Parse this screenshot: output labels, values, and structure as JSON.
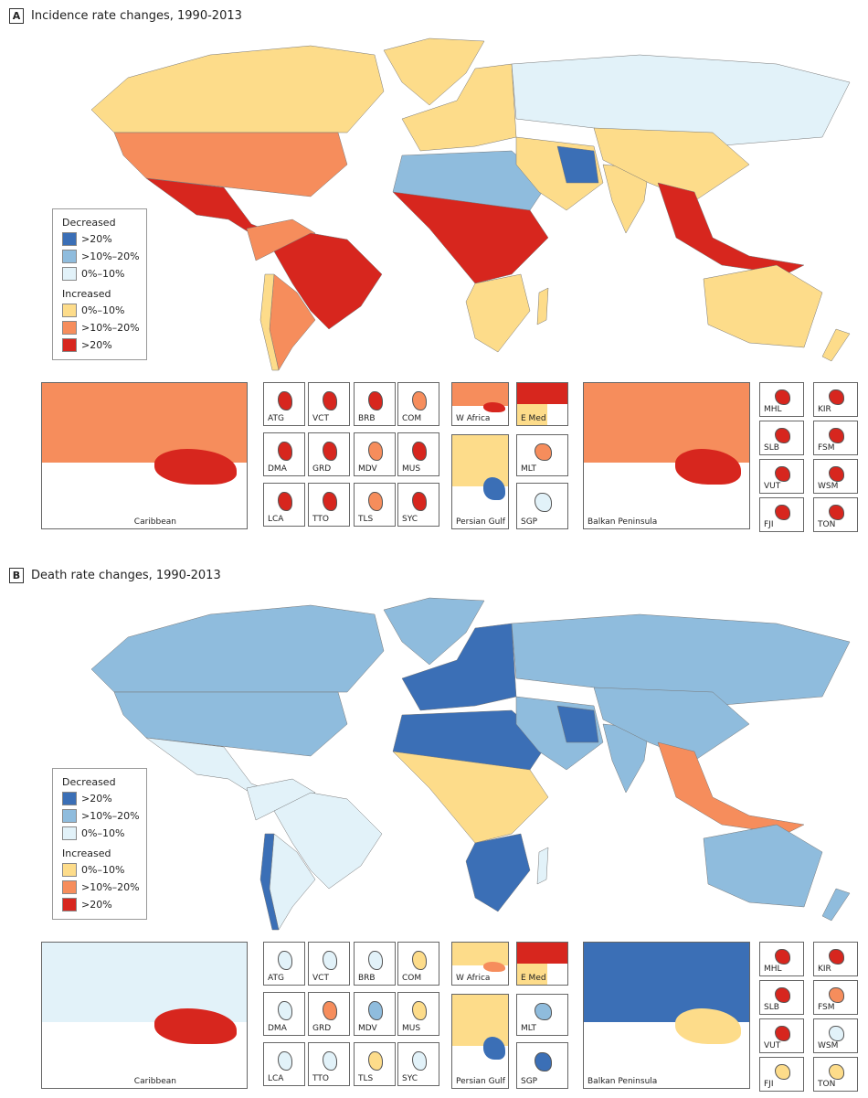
{
  "colors": {
    "dec_gt20": "#3b6fb6",
    "dec_10_20": "#8fbcdd",
    "dec_0_10": "#e2f2f9",
    "inc_0_10": "#fddc8a",
    "inc_10_20": "#f68d5c",
    "inc_gt20": "#d7261e"
  },
  "legend": {
    "decreased_heading": "Decreased",
    "increased_heading": "Increased",
    "decreased": [
      {
        "key": "dec_gt20",
        "label": ">20%"
      },
      {
        "key": "dec_10_20",
        "label": ">10%–20%"
      },
      {
        "key": "dec_0_10",
        "label": "0%–10%"
      }
    ],
    "increased": [
      {
        "key": "inc_0_10",
        "label": "0%–10%"
      },
      {
        "key": "inc_10_20",
        "label": ">10%–20%"
      },
      {
        "key": "inc_gt20",
        "label": ">20%"
      }
    ]
  },
  "panels": [
    {
      "label": "A",
      "title": "Incidence rate changes, 1990-2013",
      "regions": {
        "canada": "inc_0_10",
        "greenland": "inc_0_10",
        "usa": "inc_10_20",
        "mexico": "inc_gt20",
        "nsam": "inc_10_20",
        "brazil": "inc_gt20",
        "argentina": "inc_10_20",
        "chile": "inc_0_10",
        "weurope": "inc_0_10",
        "russia": "dec_0_10",
        "nafrica": "dec_10_20",
        "wafrica": "inc_gt20",
        "safrica": "inc_0_10",
        "madagascar": "inc_0_10",
        "mideast": "inc_0_10",
        "iran": "dec_gt20",
        "india": "inc_0_10",
        "china": "inc_0_10",
        "seasia": "inc_gt20",
        "australia": "inc_0_10",
        "nz": "inc_0_10"
      },
      "insets": [
        {
          "label": "Caribbean",
          "c": [
            "inc_10_20",
            "inc_gt20"
          ]
        },
        {
          "label": "ATG",
          "c": [
            "inc_gt20"
          ]
        },
        {
          "label": "VCT",
          "c": [
            "inc_gt20"
          ]
        },
        {
          "label": "BRB",
          "c": [
            "inc_gt20"
          ]
        },
        {
          "label": "COM",
          "c": [
            "inc_10_20"
          ]
        },
        {
          "label": "DMA",
          "c": [
            "inc_gt20"
          ]
        },
        {
          "label": "GRD",
          "c": [
            "inc_gt20"
          ]
        },
        {
          "label": "MDV",
          "c": [
            "inc_10_20"
          ]
        },
        {
          "label": "MUS",
          "c": [
            "inc_gt20"
          ]
        },
        {
          "label": "LCA",
          "c": [
            "inc_gt20"
          ]
        },
        {
          "label": "TTO",
          "c": [
            "inc_gt20"
          ]
        },
        {
          "label": "TLS",
          "c": [
            "inc_10_20"
          ]
        },
        {
          "label": "SYC",
          "c": [
            "inc_gt20"
          ]
        },
        {
          "label": "W Africa",
          "c": [
            "inc_10_20",
            "inc_gt20"
          ]
        },
        {
          "label": "E Med",
          "c": [
            "inc_gt20",
            "inc_0_10"
          ]
        },
        {
          "label": "Persian Gulf",
          "c": [
            "inc_0_10",
            "dec_gt20"
          ]
        },
        {
          "label": "MLT",
          "c": [
            "inc_10_20"
          ]
        },
        {
          "label": "SGP",
          "c": [
            "dec_0_10"
          ]
        },
        {
          "label": "Balkan Peninsula",
          "c": [
            "inc_10_20",
            "inc_gt20"
          ]
        },
        {
          "label": "MHL",
          "c": [
            "inc_gt20"
          ]
        },
        {
          "label": "KIR",
          "c": [
            "inc_gt20"
          ]
        },
        {
          "label": "SLB",
          "c": [
            "inc_gt20"
          ]
        },
        {
          "label": "FSM",
          "c": [
            "inc_gt20"
          ]
        },
        {
          "label": "VUT",
          "c": [
            "inc_gt20"
          ]
        },
        {
          "label": "WSM",
          "c": [
            "inc_gt20"
          ]
        },
        {
          "label": "FJI",
          "c": [
            "inc_gt20"
          ]
        },
        {
          "label": "TON",
          "c": [
            "inc_gt20"
          ]
        }
      ]
    },
    {
      "label": "B",
      "title": "Death rate changes, 1990-2013",
      "regions": {
        "canada": "dec_10_20",
        "greenland": "dec_10_20",
        "usa": "dec_10_20",
        "mexico": "dec_0_10",
        "nsam": "dec_0_10",
        "brazil": "dec_0_10",
        "argentina": "dec_0_10",
        "chile": "dec_gt20",
        "weurope": "dec_gt20",
        "russia": "dec_10_20",
        "nafrica": "dec_gt20",
        "wafrica": "inc_0_10",
        "safrica": "dec_gt20",
        "madagascar": "dec_0_10",
        "mideast": "dec_10_20",
        "iran": "dec_gt20",
        "india": "dec_10_20",
        "china": "dec_10_20",
        "seasia": "inc_10_20",
        "australia": "dec_10_20",
        "nz": "dec_10_20"
      },
      "insets": [
        {
          "label": "Caribbean",
          "c": [
            "dec_0_10",
            "inc_gt20"
          ]
        },
        {
          "label": "ATG",
          "c": [
            "dec_0_10"
          ]
        },
        {
          "label": "VCT",
          "c": [
            "dec_0_10"
          ]
        },
        {
          "label": "BRB",
          "c": [
            "dec_0_10"
          ]
        },
        {
          "label": "COM",
          "c": [
            "inc_0_10"
          ]
        },
        {
          "label": "DMA",
          "c": [
            "dec_0_10"
          ]
        },
        {
          "label": "GRD",
          "c": [
            "inc_10_20"
          ]
        },
        {
          "label": "MDV",
          "c": [
            "dec_10_20"
          ]
        },
        {
          "label": "MUS",
          "c": [
            "inc_0_10"
          ]
        },
        {
          "label": "LCA",
          "c": [
            "dec_0_10"
          ]
        },
        {
          "label": "TTO",
          "c": [
            "dec_0_10"
          ]
        },
        {
          "label": "TLS",
          "c": [
            "inc_0_10"
          ]
        },
        {
          "label": "SYC",
          "c": [
            "dec_0_10"
          ]
        },
        {
          "label": "W Africa",
          "c": [
            "inc_0_10",
            "inc_10_20"
          ]
        },
        {
          "label": "E Med",
          "c": [
            "inc_gt20",
            "inc_0_10"
          ]
        },
        {
          "label": "Persian Gulf",
          "c": [
            "inc_0_10",
            "dec_gt20"
          ]
        },
        {
          "label": "MLT",
          "c": [
            "dec_10_20"
          ]
        },
        {
          "label": "SGP",
          "c": [
            "dec_gt20"
          ]
        },
        {
          "label": "Balkan Peninsula",
          "c": [
            "dec_gt20",
            "inc_0_10"
          ]
        },
        {
          "label": "MHL",
          "c": [
            "inc_gt20"
          ]
        },
        {
          "label": "KIR",
          "c": [
            "inc_gt20"
          ]
        },
        {
          "label": "SLB",
          "c": [
            "inc_gt20"
          ]
        },
        {
          "label": "FSM",
          "c": [
            "inc_10_20"
          ]
        },
        {
          "label": "VUT",
          "c": [
            "inc_gt20"
          ]
        },
        {
          "label": "WSM",
          "c": [
            "dec_0_10"
          ]
        },
        {
          "label": "FJI",
          "c": [
            "inc_0_10"
          ]
        },
        {
          "label": "TON",
          "c": [
            "inc_0_10"
          ]
        }
      ]
    }
  ]
}
